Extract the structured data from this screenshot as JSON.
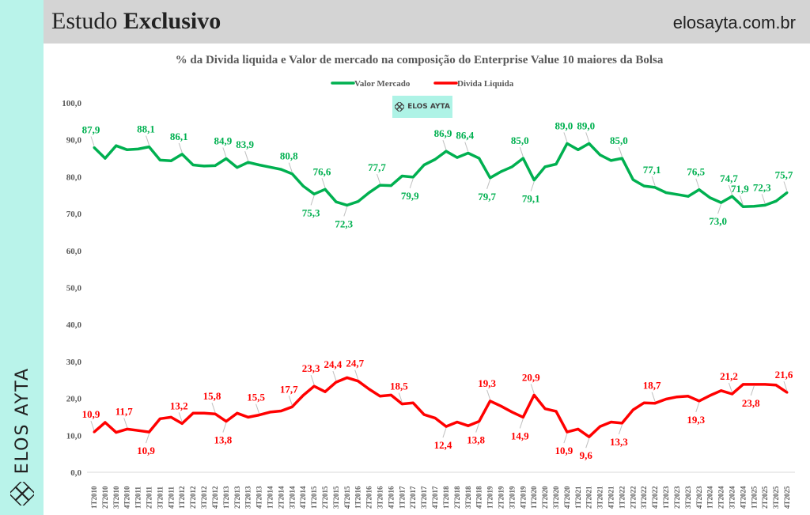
{
  "header": {
    "title_regular": "Estudo",
    "title_bold": "Exclusivo",
    "site": "elosayta.com.br"
  },
  "sidebar": {
    "brand": "ELOS AYTA"
  },
  "watermark": {
    "brand": "ELOS AYTA"
  },
  "colors": {
    "valor": "#00b050",
    "divida": "#ff0000",
    "sidebar": "#b9f3ea",
    "header": "#d4d4d4"
  },
  "chart_data": {
    "type": "line",
    "title": "% da Divida liquida e Valor de mercado na composição do Enterprise Value 10 maiores da Bolsa",
    "xlabel": "",
    "ylabel": "",
    "ylim": [
      0,
      100
    ],
    "yticks": [
      "0,0",
      "10,0",
      "20,0",
      "30,0",
      "40,0",
      "50,0",
      "60,0",
      "70,0",
      "80,0",
      "90,0",
      "100,0"
    ],
    "legend_position": "top-center",
    "grid": false,
    "categories": [
      "1T2010",
      "2T2010",
      "3T2010",
      "4T2010",
      "1T2011",
      "2T2011",
      "3T2011",
      "4T2011",
      "1T2012",
      "2T2012",
      "3T2012",
      "4T2012",
      "1T2013",
      "2T2013",
      "3T2013",
      "4T2013",
      "1T2014",
      "2T2014",
      "3T2014",
      "4T2014",
      "1T2015",
      "2T2015",
      "3T2015",
      "4T2015",
      "1T2016",
      "2T2016",
      "3T2016",
      "4T2016",
      "1T2017",
      "2T2017",
      "3T2017",
      "4T2017",
      "1T2018",
      "2T2018",
      "3T2018",
      "4T2018",
      "1T2019",
      "2T2019",
      "3T2019",
      "4T2019",
      "1T2020",
      "2T2020",
      "3T2020",
      "4T2020",
      "1T2021",
      "2T2021",
      "3T2021",
      "4T2021",
      "1T2022",
      "2T2022",
      "3T2022",
      "4T2022",
      "1T2023",
      "2T2023",
      "3T2023",
      "4T2023",
      "1T2024",
      "2T2024",
      "3T2024",
      "4T2024",
      "1T2025",
      "2T2025",
      "3T2025",
      "4T2025"
    ],
    "series": [
      {
        "name": "Valor Mercado",
        "color": "#00b050",
        "values": [
          87.9,
          85.0,
          88.4,
          87.3,
          87.5,
          88.1,
          84.5,
          84.3,
          86.1,
          83.2,
          82.9,
          83.0,
          84.9,
          82.5,
          83.9,
          83.2,
          82.6,
          82.0,
          80.8,
          77.5,
          75.3,
          76.6,
          73.2,
          72.3,
          73.3,
          75.7,
          77.7,
          77.6,
          80.2,
          79.9,
          83.2,
          84.7,
          86.9,
          85.2,
          86.4,
          85.0,
          79.7,
          81.4,
          82.7,
          85.0,
          79.1,
          82.7,
          83.4,
          89.0,
          87.3,
          89.0,
          85.9,
          84.4,
          85.0,
          79.2,
          77.5,
          77.1,
          75.7,
          75.2,
          74.7,
          76.5,
          74.3,
          73.0,
          74.7,
          71.9,
          72.0,
          72.3,
          73.4,
          75.7
        ],
        "labels": [
          {
            "i": 0,
            "text": "87,9",
            "pos": "above"
          },
          {
            "i": 5,
            "text": "88,1",
            "pos": "above"
          },
          {
            "i": 8,
            "text": "86,1",
            "pos": "above"
          },
          {
            "i": 12,
            "text": "84,9",
            "pos": "above"
          },
          {
            "i": 14,
            "text": "83,9",
            "pos": "above"
          },
          {
            "i": 18,
            "text": "80,8",
            "pos": "above"
          },
          {
            "i": 20,
            "text": "75,3",
            "pos": "below"
          },
          {
            "i": 21,
            "text": "76,6",
            "pos": "above"
          },
          {
            "i": 23,
            "text": "72,3",
            "pos": "below"
          },
          {
            "i": 26,
            "text": "77,7",
            "pos": "above"
          },
          {
            "i": 29,
            "text": "79,9",
            "pos": "below"
          },
          {
            "i": 32,
            "text": "86,9",
            "pos": "above"
          },
          {
            "i": 34,
            "text": "86,4",
            "pos": "above"
          },
          {
            "i": 36,
            "text": "79,7",
            "pos": "below"
          },
          {
            "i": 39,
            "text": "85,0",
            "pos": "above"
          },
          {
            "i": 40,
            "text": "79,1",
            "pos": "below"
          },
          {
            "i": 43,
            "text": "89,0",
            "pos": "above"
          },
          {
            "i": 45,
            "text": "89,0",
            "pos": "above"
          },
          {
            "i": 48,
            "text": "85,0",
            "pos": "above"
          },
          {
            "i": 51,
            "text": "77,1",
            "pos": "above"
          },
          {
            "i": 55,
            "text": "76,5",
            "pos": "above"
          },
          {
            "i": 57,
            "text": "73,0",
            "pos": "below"
          },
          {
            "i": 58,
            "text": "74,7",
            "pos": "above"
          },
          {
            "i": 59,
            "text": "71,9",
            "pos": "above"
          },
          {
            "i": 61,
            "text": "72,3",
            "pos": "above"
          },
          {
            "i": 63,
            "text": "75,7",
            "pos": "above"
          }
        ]
      },
      {
        "name": "Divida Liquida",
        "color": "#ff0000",
        "values": [
          10.9,
          13.5,
          10.8,
          11.7,
          11.3,
          10.9,
          14.5,
          14.9,
          13.2,
          16.0,
          16.0,
          15.8,
          13.8,
          16.0,
          14.9,
          15.5,
          16.3,
          16.6,
          17.7,
          20.8,
          23.3,
          21.8,
          24.4,
          25.6,
          24.7,
          22.5,
          20.6,
          20.9,
          18.5,
          18.8,
          15.6,
          14.7,
          12.4,
          13.6,
          12.6,
          13.8,
          19.3,
          17.9,
          16.3,
          14.9,
          20.9,
          17.2,
          16.5,
          10.9,
          11.7,
          9.6,
          12.4,
          13.6,
          13.3,
          16.9,
          18.8,
          18.7,
          19.8,
          20.4,
          20.6,
          19.3,
          20.8,
          22.1,
          21.2,
          23.8,
          23.8,
          23.8,
          23.6,
          21.6
        ],
        "labels": [
          {
            "i": 0,
            "text": "10,9",
            "pos": "above"
          },
          {
            "i": 3,
            "text": "11,7",
            "pos": "above"
          },
          {
            "i": 5,
            "text": "10,9",
            "pos": "below"
          },
          {
            "i": 8,
            "text": "13,2",
            "pos": "above"
          },
          {
            "i": 11,
            "text": "15,8",
            "pos": "above"
          },
          {
            "i": 12,
            "text": "13,8",
            "pos": "below"
          },
          {
            "i": 15,
            "text": "15,5",
            "pos": "above"
          },
          {
            "i": 18,
            "text": "17,7",
            "pos": "above"
          },
          {
            "i": 20,
            "text": "23,3",
            "pos": "above"
          },
          {
            "i": 22,
            "text": "24,4",
            "pos": "above"
          },
          {
            "i": 24,
            "text": "24,7",
            "pos": "above"
          },
          {
            "i": 28,
            "text": "18,5",
            "pos": "above"
          },
          {
            "i": 32,
            "text": "12,4",
            "pos": "below"
          },
          {
            "i": 35,
            "text": "13,8",
            "pos": "below"
          },
          {
            "i": 36,
            "text": "19,3",
            "pos": "above"
          },
          {
            "i": 39,
            "text": "14,9",
            "pos": "below"
          },
          {
            "i": 40,
            "text": "20,9",
            "pos": "above"
          },
          {
            "i": 43,
            "text": "10,9",
            "pos": "below"
          },
          {
            "i": 45,
            "text": "9,6",
            "pos": "below"
          },
          {
            "i": 48,
            "text": "13,3",
            "pos": "below"
          },
          {
            "i": 51,
            "text": "18,7",
            "pos": "above"
          },
          {
            "i": 55,
            "text": "19,3",
            "pos": "below"
          },
          {
            "i": 58,
            "text": "21,2",
            "pos": "above"
          },
          {
            "i": 60,
            "text": "23,8",
            "pos": "below"
          },
          {
            "i": 63,
            "text": "21,6",
            "pos": "above"
          }
        ]
      }
    ]
  }
}
